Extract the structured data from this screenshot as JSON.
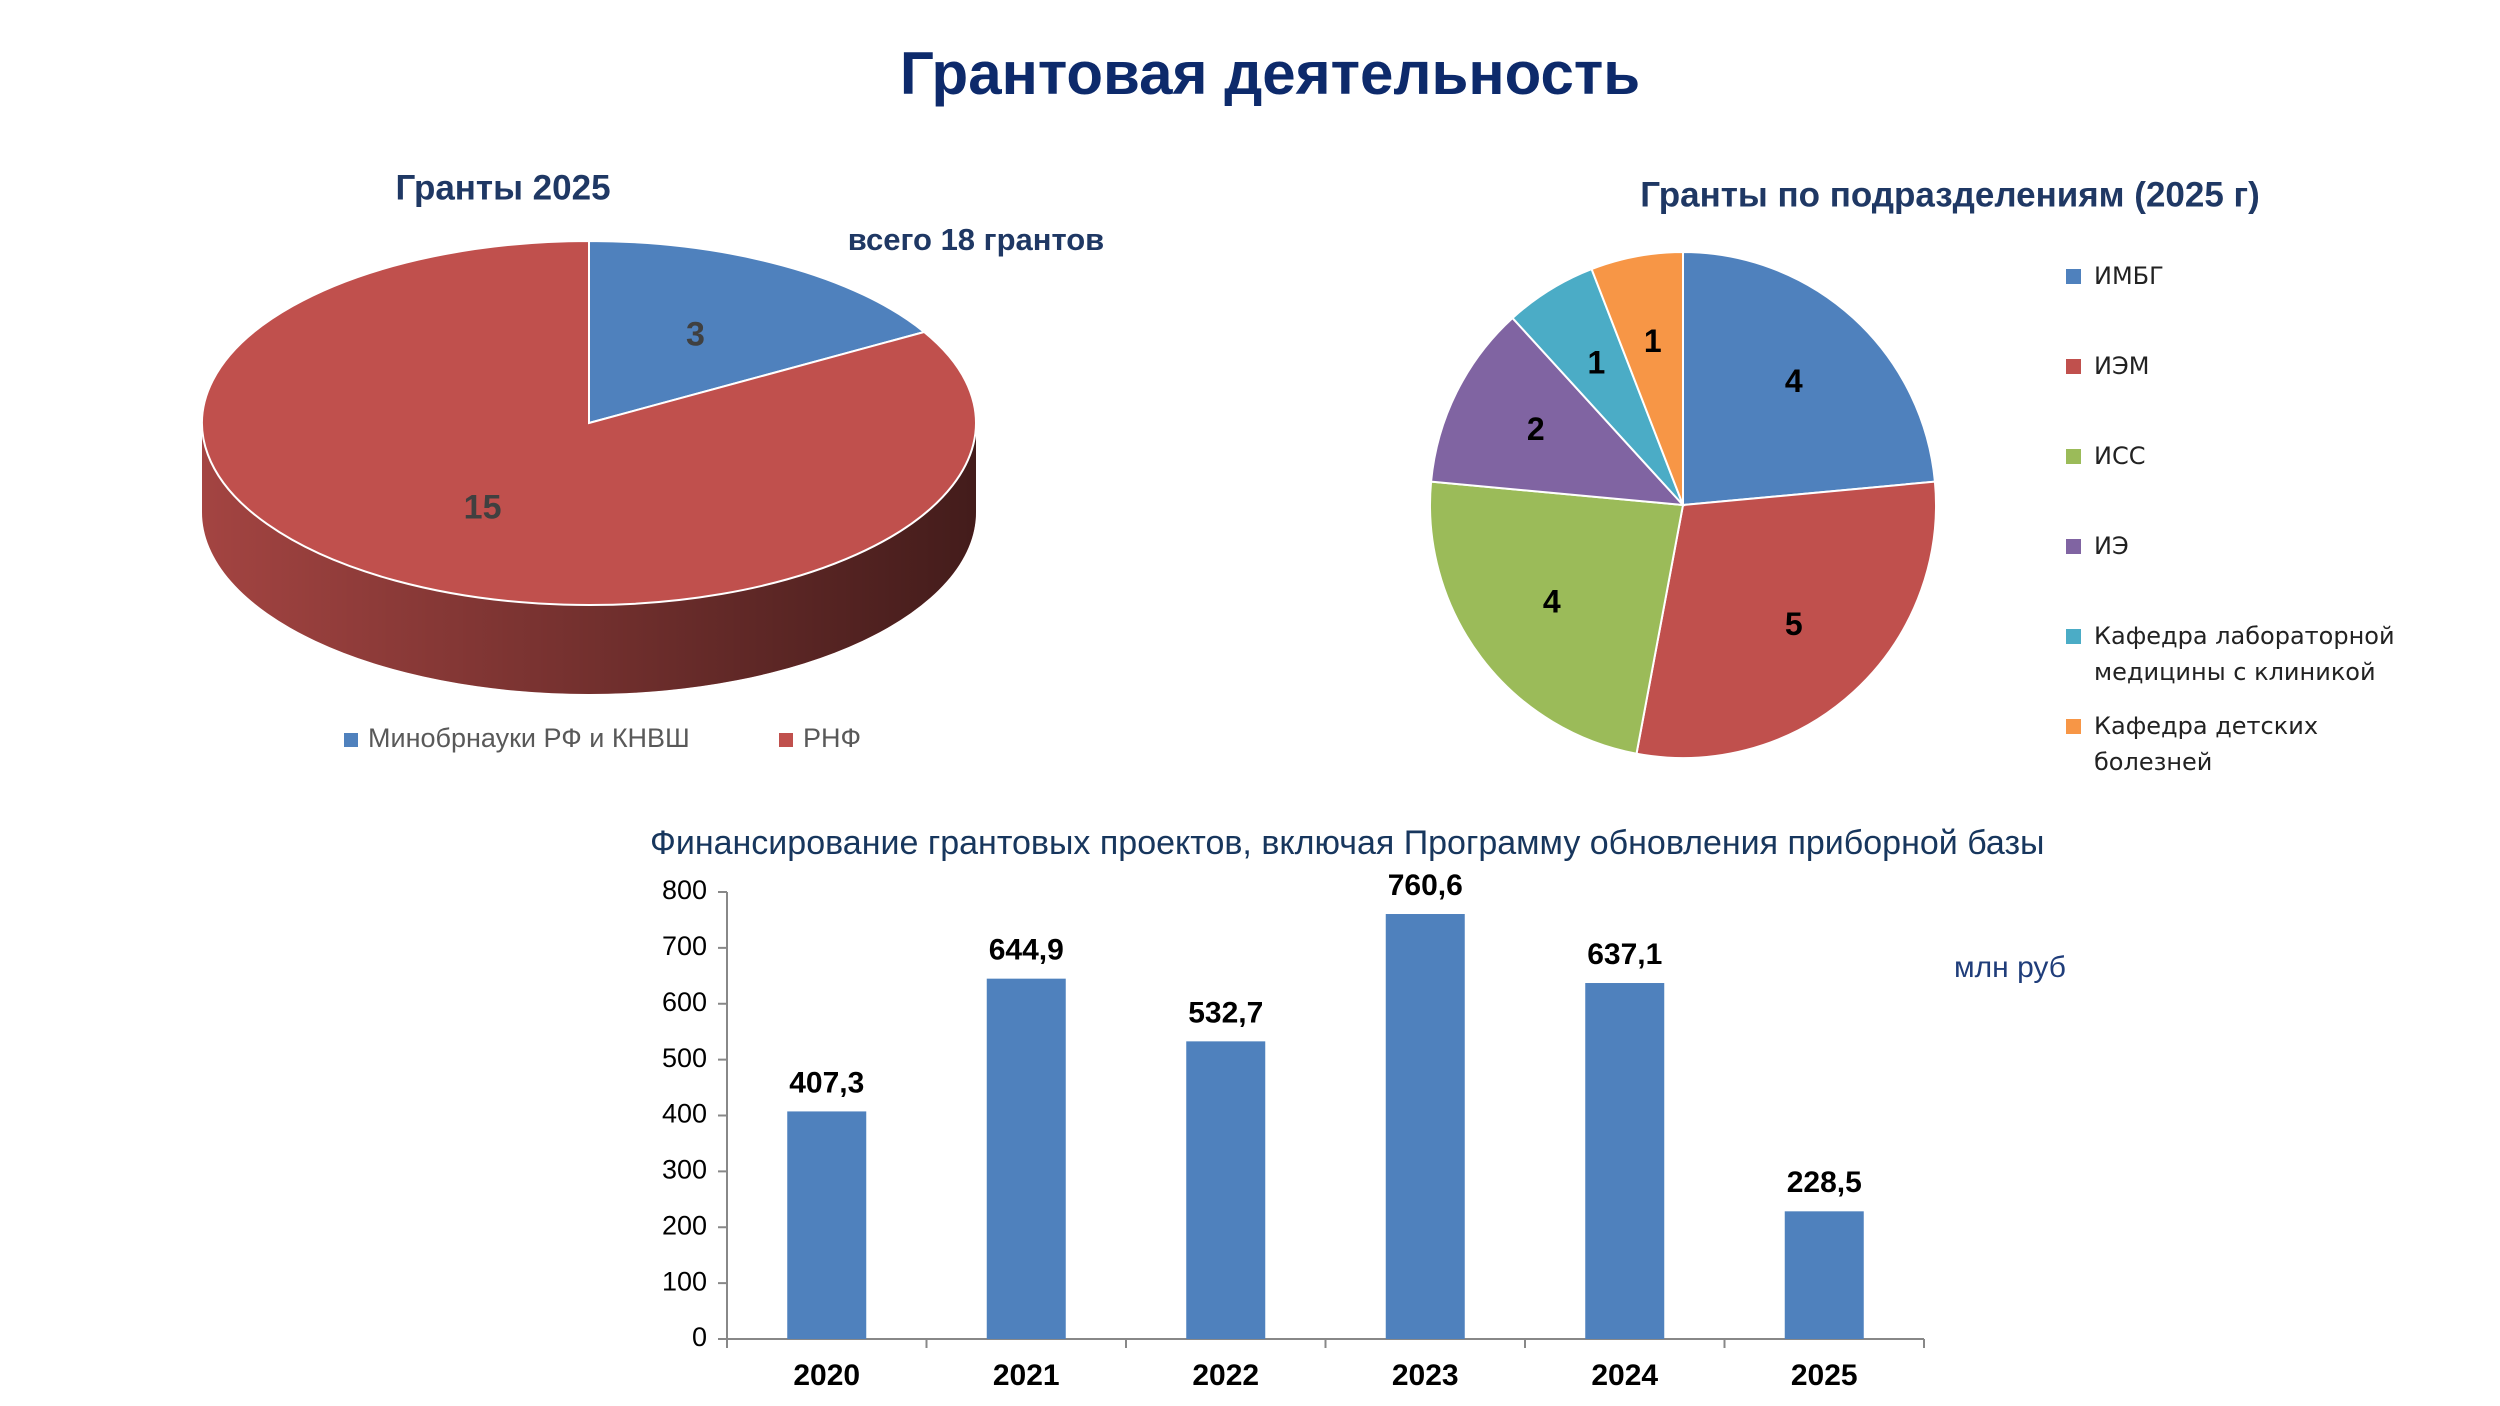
{
  "title": "Грантовая деятельность",
  "chart_data": [
    {
      "type": "pie",
      "title": "Гранты 2025",
      "annotation": "всего 18 грантов",
      "three_d": true,
      "legend": "bottom",
      "categories": [
        "Минобрнауки РФ и КНВШ",
        "РНФ"
      ],
      "values": [
        3,
        15
      ],
      "colors": [
        "#4f81bd",
        "#c0504d"
      ]
    },
    {
      "type": "pie",
      "title": "Гранты по подразделениям (2025 г)",
      "legend": "right",
      "categories": [
        "ИМБГ",
        "ИЭМ",
        "ИСС",
        "ИЭ",
        "Кафедра лабораторной медицины с клиникой",
        "Кафедра детских болезней"
      ],
      "values": [
        4,
        5,
        4,
        2,
        1,
        1
      ],
      "colors": [
        "#4f81bd",
        "#c0504d",
        "#9bbb59",
        "#8064a2",
        "#4bacc6",
        "#f79646"
      ]
    },
    {
      "type": "bar",
      "title": "Финансирование грантовых проектов, включая Программу обновления приборной базы",
      "unit": "млн руб",
      "categories": [
        "2020",
        "2021",
        "2022",
        "2023",
        "2024",
        "2025"
      ],
      "values": [
        407.3,
        644.9,
        532.7,
        760.6,
        637.1,
        228.5
      ],
      "value_labels": [
        "407,3",
        "644,9",
        "532,7",
        "760,6",
        "637,1",
        "228,5"
      ],
      "color": "#4f81bd",
      "ylim": [
        0,
        800
      ],
      "yticks": [
        0,
        100,
        200,
        300,
        400,
        500,
        600,
        700,
        800
      ],
      "grid": false
    }
  ]
}
